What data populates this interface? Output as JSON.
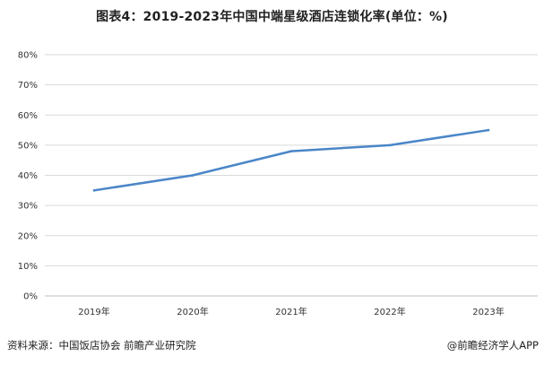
{
  "title": "图表4：2019-2023年中国中端星级酒店连锁化率(单位：%)",
  "source": "资料来源：中国饭店协会 前瞻产业研究院",
  "credit": "@前瞻经济学人APP",
  "chart_data": {
    "type": "line",
    "title": "图表4：2019-2023年中国中端星级酒店连锁化率(单位：%)",
    "xlabel": "",
    "ylabel": "",
    "categories": [
      "2019年",
      "2020年",
      "2021年",
      "2022年",
      "2023年"
    ],
    "series": [
      {
        "values": [
          35,
          40,
          48,
          50,
          55
        ],
        "color": "#4a86c8"
      }
    ],
    "ylim": [
      0,
      80
    ],
    "yticks": [
      "0%",
      "10%",
      "20%",
      "30%",
      "40%",
      "50%",
      "60%",
      "70%",
      "80%"
    ],
    "grid": true,
    "legend": "none"
  }
}
